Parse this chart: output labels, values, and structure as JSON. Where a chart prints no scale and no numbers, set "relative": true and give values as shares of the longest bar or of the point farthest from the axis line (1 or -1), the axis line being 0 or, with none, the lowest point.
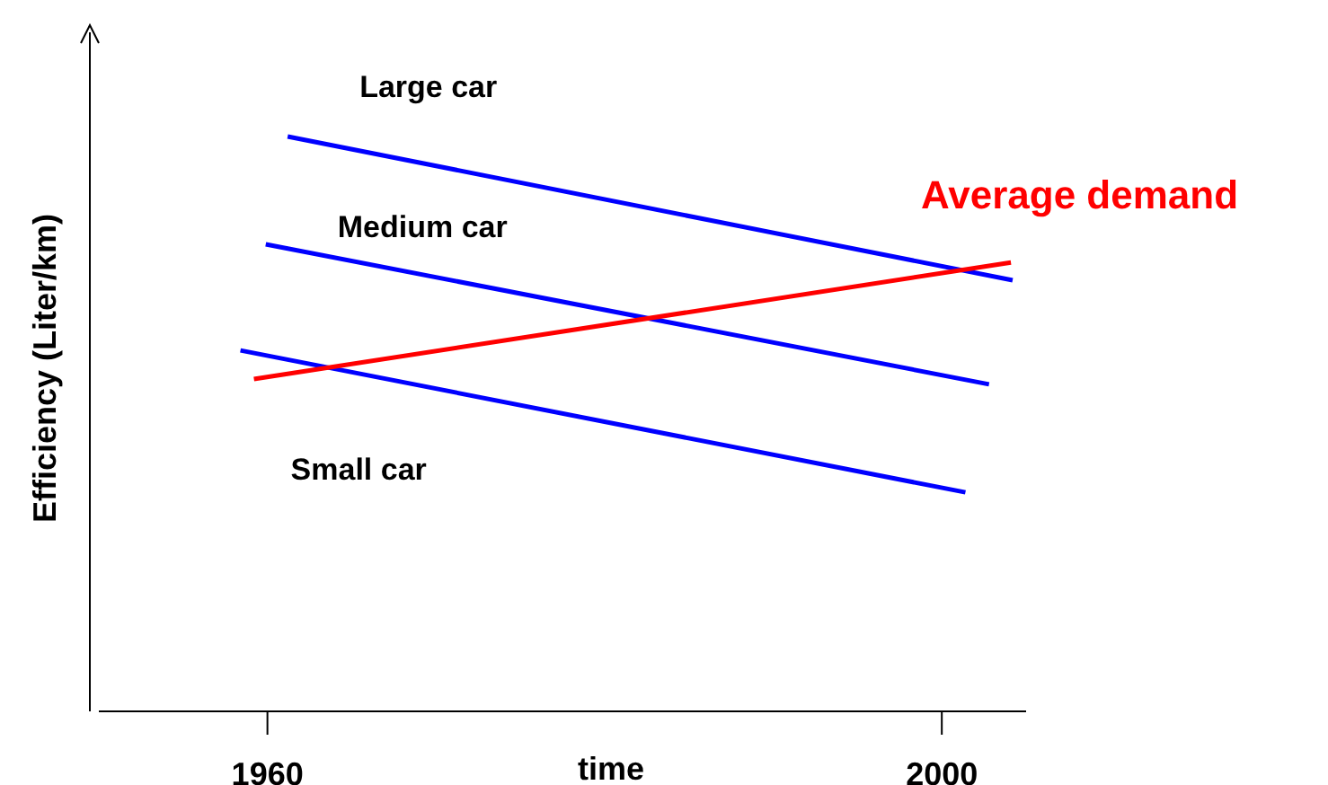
{
  "chart_data": {
    "type": "line",
    "relative": true,
    "xlabel": "time",
    "ylabel": "Efficiency (Liter/km)",
    "xlim": [
      1950,
      2005
    ],
    "xticks": [
      1960,
      2000
    ],
    "grid": false,
    "legend": false,
    "marker": "none",
    "line_style": "solid",
    "series": [
      {
        "name": "Large car",
        "color": "#0000ff",
        "x": [
          1961.2,
          2004.2
        ],
        "values": [
          1,
          0.75
        ]
      },
      {
        "name": "Medium car",
        "color": "#0000ff",
        "x": [
          1959.9,
          2002.8
        ],
        "values": [
          0.8125,
          0.569
        ]
      },
      {
        "name": "Small car",
        "color": "#0000ff",
        "x": [
          1958.4,
          2001.4
        ],
        "values": [
          0.628,
          0.381
        ]
      },
      {
        "name": "Average demand",
        "color": "#ff0000",
        "x": [
          1959.2,
          2004.1
        ],
        "values": [
          0.578,
          0.781
        ]
      }
    ]
  }
}
